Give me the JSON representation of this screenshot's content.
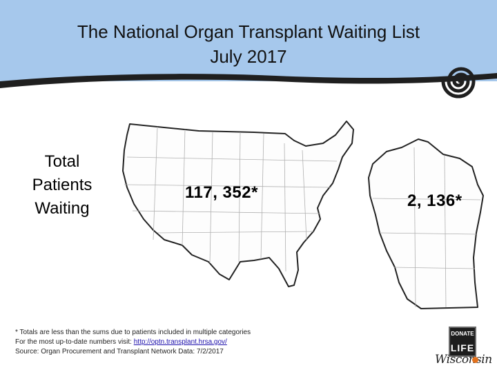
{
  "header": {
    "title_line1": "The National Organ Transplant Waiting List",
    "title_line2": "July 2017"
  },
  "summary": {
    "label_line1": "Total",
    "label_line2": "Patients",
    "label_line3": "Waiting",
    "us_count": "117, 352*",
    "wi_count": "2, 136*"
  },
  "footnotes": {
    "note": "* Totals are less than the sums due to patients included in multiple categories",
    "more_info_prefix": "For the most up-to-date numbers visit: ",
    "more_info_link": "http://optn.transplant.hrsa.gov/",
    "source": "Source: Organ Procurement and Transplant Network Data:  7/2/2017"
  },
  "logo": {
    "top": "DONATE",
    "bottom": "LIFE",
    "script": "Wisconsin"
  },
  "colors": {
    "header_bg": "#a6c8ec",
    "band_dark": "#1f1f1f",
    "accent_orange": "#e2711d"
  },
  "icons": [
    "swirl-icon",
    "us-map-icon",
    "wisconsin-map-icon",
    "donate-life-logo"
  ]
}
